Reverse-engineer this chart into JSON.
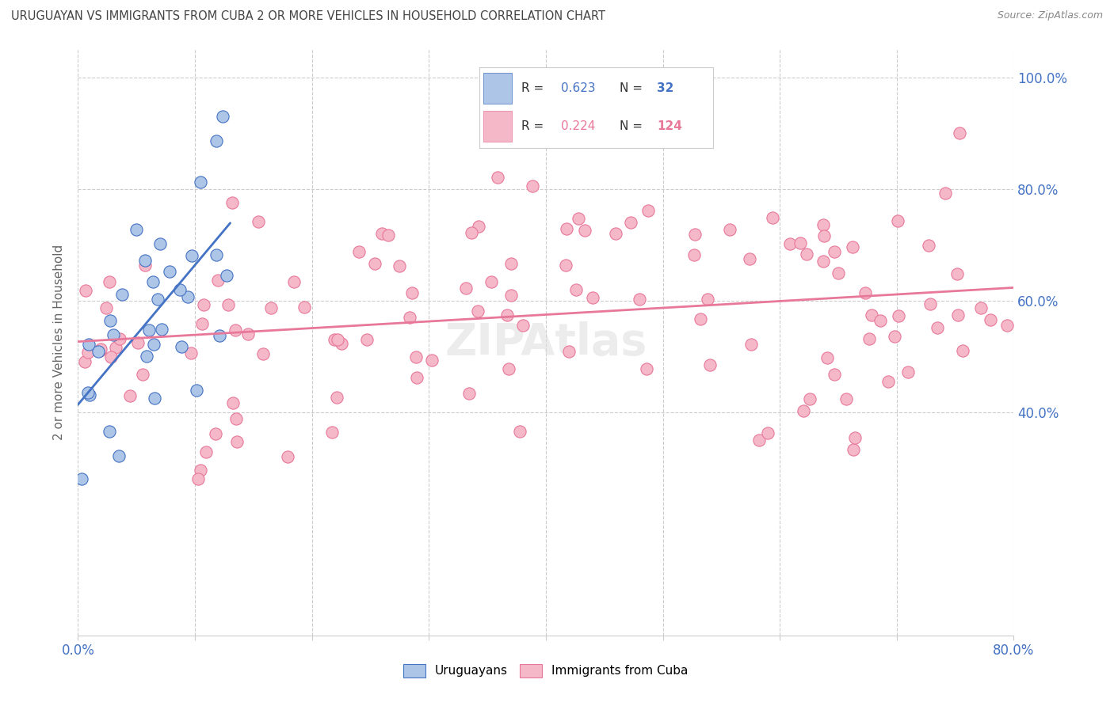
{
  "title": "URUGUAYAN VS IMMIGRANTS FROM CUBA 2 OR MORE VEHICLES IN HOUSEHOLD CORRELATION CHART",
  "source": "Source: ZipAtlas.com",
  "ylabel": "2 or more Vehicles in Household",
  "xlim": [
    0.0,
    0.8
  ],
  "ylim": [
    0.0,
    1.05
  ],
  "uruguayan_color": "#adc6e8",
  "cuba_color": "#f5b8c8",
  "uruguayan_line_color": "#4472c4",
  "cuba_line_color": "#e8789a",
  "R_uruguayan": 0.623,
  "N_uruguayan": 32,
  "R_cuba": 0.224,
  "N_cuba": 124,
  "legend_labels": [
    "Uruguayans",
    "Immigrants from Cuba"
  ],
  "grid_color": "#cccccc",
  "axis_label_color": "#4472c4",
  "title_color": "#444444",
  "source_color": "#888888"
}
